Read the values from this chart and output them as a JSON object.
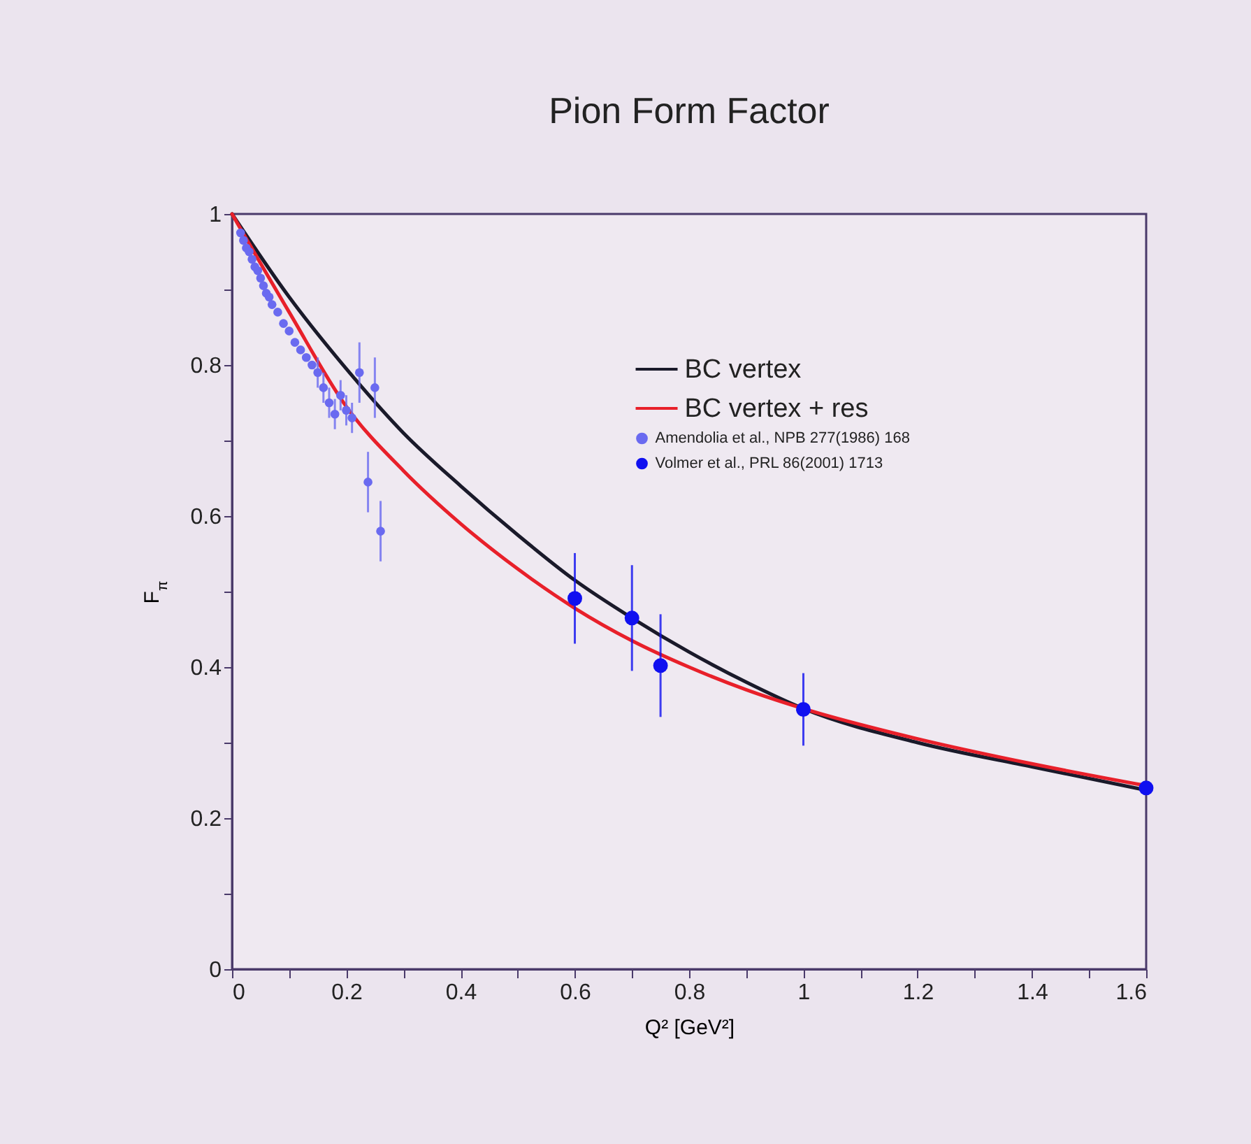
{
  "chart_data": {
    "type": "line",
    "title": "Pion Form Factor",
    "xlabel": "Q² [GeV²]",
    "ylabel": "F$_{π}$",
    "xlim": [
      0,
      1.6
    ],
    "ylim": [
      0,
      1
    ],
    "xticks": [
      0,
      {
        "value": 0.1,
        "label": null
      },
      0.2,
      {
        "value": 0.3,
        "label": null
      },
      0.4,
      {
        "value": 0.5,
        "label": null
      },
      0.6,
      {
        "value": 0.7,
        "label": null
      },
      0.8,
      {
        "value": 0.9,
        "label": null
      },
      1,
      {
        "value": 1.1,
        "label": null
      },
      1.2,
      {
        "value": 1.3,
        "label": null
      },
      1.4,
      {
        "value": 1.5,
        "label": null
      },
      1.6
    ],
    "yticks": [
      0,
      {
        "value": 0.1,
        "label": null
      },
      0.2,
      {
        "value": 0.3,
        "label": null
      },
      0.4,
      {
        "value": 0.5,
        "label": null
      },
      0.6,
      {
        "value": 0.7,
        "label": null
      },
      0.8,
      {
        "value": 0.9,
        "label": null
      },
      1
    ],
    "legend": "top right",
    "grid": false,
    "series": [
      {
        "name": "BC vertex",
        "color": "#1a1a2a",
        "x": [
          0,
          0.1,
          0.2,
          0.3,
          0.4,
          0.5,
          0.6,
          0.7,
          0.8,
          0.9,
          1.0,
          1.2,
          1.4,
          1.6
        ],
        "values": [
          1,
          0.89,
          0.795,
          0.71,
          0.64,
          0.575,
          0.515,
          0.465,
          0.42,
          0.38,
          0.345,
          0.3,
          0.268,
          0.237
        ]
      },
      {
        "name": "BC vertex + res",
        "color": "#e8202a",
        "x": [
          0,
          0.1,
          0.2,
          0.3,
          0.4,
          0.5,
          0.6,
          0.7,
          0.8,
          0.9,
          1.0,
          1.2,
          1.4,
          1.6
        ],
        "values": [
          1,
          0.87,
          0.745,
          0.66,
          0.59,
          0.53,
          0.478,
          0.435,
          0.4,
          0.37,
          0.345,
          0.305,
          0.272,
          0.243
        ]
      },
      {
        "name": "Amendolia et al., NPB 277(1986) 168",
        "type": "scatter",
        "marker": "circle",
        "color": "#6a6af0",
        "x": [
          0.015,
          0.02,
          0.025,
          0.03,
          0.035,
          0.04,
          0.045,
          0.05,
          0.055,
          0.06,
          0.065,
          0.07,
          0.08,
          0.09,
          0.1,
          0.11,
          0.12,
          0.13,
          0.14,
          0.15,
          0.16,
          0.17,
          0.18,
          0.19,
          0.2,
          0.21,
          0.223,
          0.238,
          0.25,
          0.26
        ],
        "values": [
          0.975,
          0.965,
          0.955,
          0.95,
          0.94,
          0.93,
          0.925,
          0.915,
          0.905,
          0.895,
          0.89,
          0.88,
          0.87,
          0.855,
          0.845,
          0.83,
          0.82,
          0.81,
          0.8,
          0.79,
          0.77,
          0.75,
          0.735,
          0.76,
          0.74,
          0.73,
          0.79,
          0.645,
          0.77,
          0.58
        ],
        "errors": [
          null,
          null,
          null,
          null,
          null,
          null,
          null,
          null,
          null,
          null,
          null,
          null,
          null,
          null,
          null,
          null,
          null,
          null,
          null,
          0.02,
          0.02,
          0.02,
          0.02,
          0.02,
          0.02,
          0.02,
          0.04,
          0.04,
          0.04,
          0.04
        ]
      },
      {
        "name": "Volmer et al., PRL 86(2001) 1713",
        "type": "scatter",
        "marker": "circle",
        "color": "#1010f0",
        "x": [
          0.6,
          0.7,
          0.75,
          1.0,
          1.6
        ],
        "values": [
          0.491,
          0.465,
          0.402,
          0.344,
          0.24
        ],
        "errors": [
          0.06,
          0.07,
          0.068,
          0.048,
          null
        ]
      }
    ]
  }
}
